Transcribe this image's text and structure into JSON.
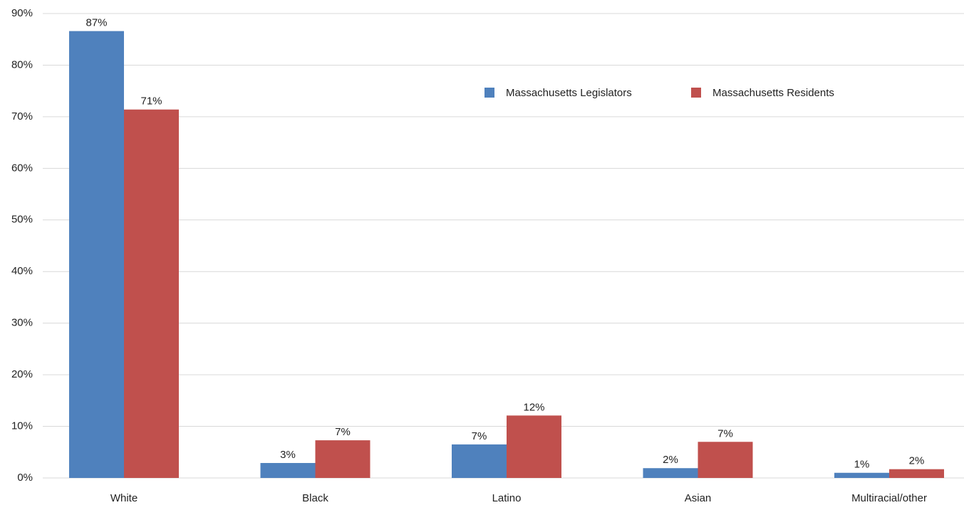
{
  "chart_data": {
    "type": "bar",
    "categories": [
      "White",
      "Black",
      "Latino",
      "Asian",
      "Multiracial/other"
    ],
    "series": [
      {
        "name": "Massachusetts Legislators",
        "color": "#4f81bd",
        "values": [
          86.6,
          2.9,
          6.5,
          1.9,
          1.0
        ],
        "value_labels": [
          "87%",
          "3%",
          "7%",
          "2%",
          "1%"
        ]
      },
      {
        "name": "Massachusetts Residents",
        "color": "#c0504d",
        "values": [
          71.4,
          7.3,
          12.1,
          7.0,
          1.7
        ],
        "value_labels": [
          "71%",
          "7%",
          "12%",
          "7%",
          "2%"
        ]
      }
    ],
    "ylim": [
      0,
      90
    ],
    "yticks": [
      {
        "value": 0,
        "label": "0%"
      },
      {
        "value": 10,
        "label": "10%"
      },
      {
        "value": 20,
        "label": "20%"
      },
      {
        "value": 30,
        "label": "30%"
      },
      {
        "value": 40,
        "label": "40%"
      },
      {
        "value": 50,
        "label": "50%"
      },
      {
        "value": 60,
        "label": "60%"
      },
      {
        "value": 70,
        "label": "70%"
      },
      {
        "value": 80,
        "label": "80%"
      },
      {
        "value": 90,
        "label": "90%"
      }
    ],
    "grid": true,
    "legend": "top-right"
  }
}
